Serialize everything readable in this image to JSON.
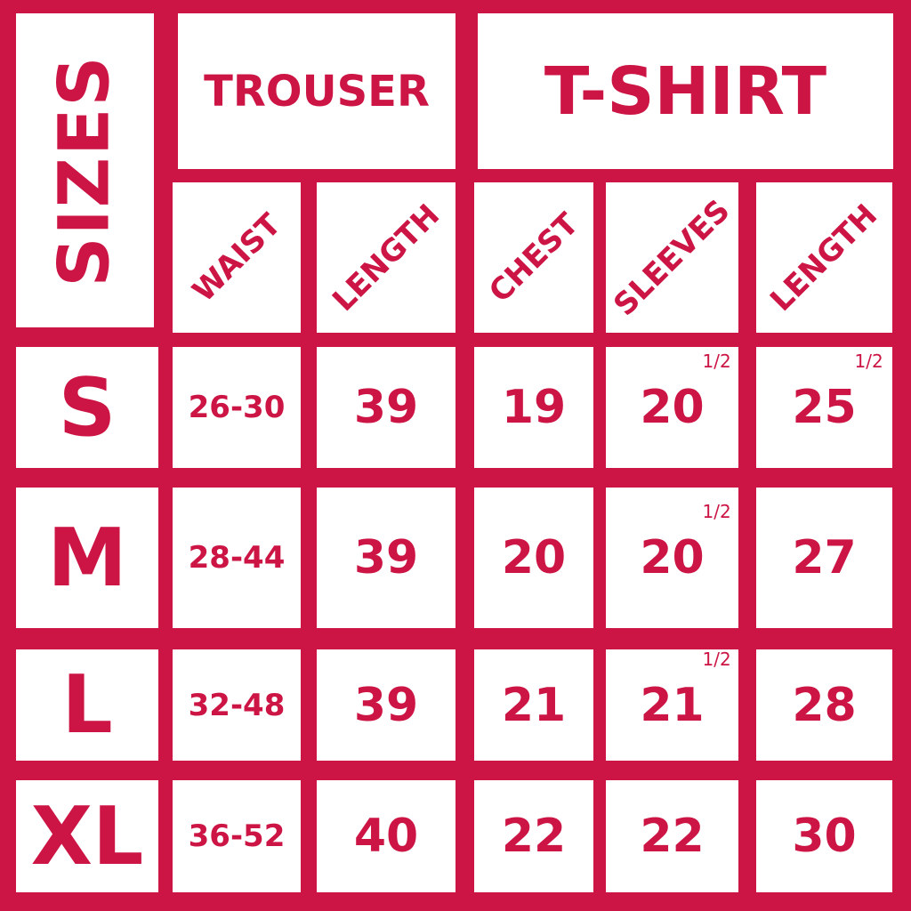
{
  "title": "SIZES",
  "groups": {
    "trouser": "TROUSER",
    "tshirt": "T-SHIRT"
  },
  "columns": [
    "WAIST",
    "LENGTH",
    "CHEST",
    "SLEEVES",
    "LENGTH"
  ],
  "rows": [
    {
      "size": "S",
      "waist": "26-30",
      "trouser_length": "39",
      "chest": "19",
      "sleeves": "20",
      "sleeves_frac": "1/2",
      "tshirt_length": "25",
      "tshirt_length_frac": "1/2"
    },
    {
      "size": "M",
      "waist": "28-44",
      "trouser_length": "39",
      "chest": "20",
      "sleeves": "20",
      "sleeves_frac": "1/2",
      "tshirt_length": "27"
    },
    {
      "size": "L",
      "waist": "32-48",
      "trouser_length": "39",
      "chest": "21",
      "sleeves": "21",
      "sleeves_frac": "1/2",
      "tshirt_length": "28"
    },
    {
      "size": "XL",
      "waist": "36-52",
      "trouser_length": "40",
      "chest": "22",
      "sleeves": "22",
      "tshirt_length": "30"
    }
  ],
  "colors": {
    "brand_red": "#CC1544",
    "cell": "#FFFFFF"
  }
}
